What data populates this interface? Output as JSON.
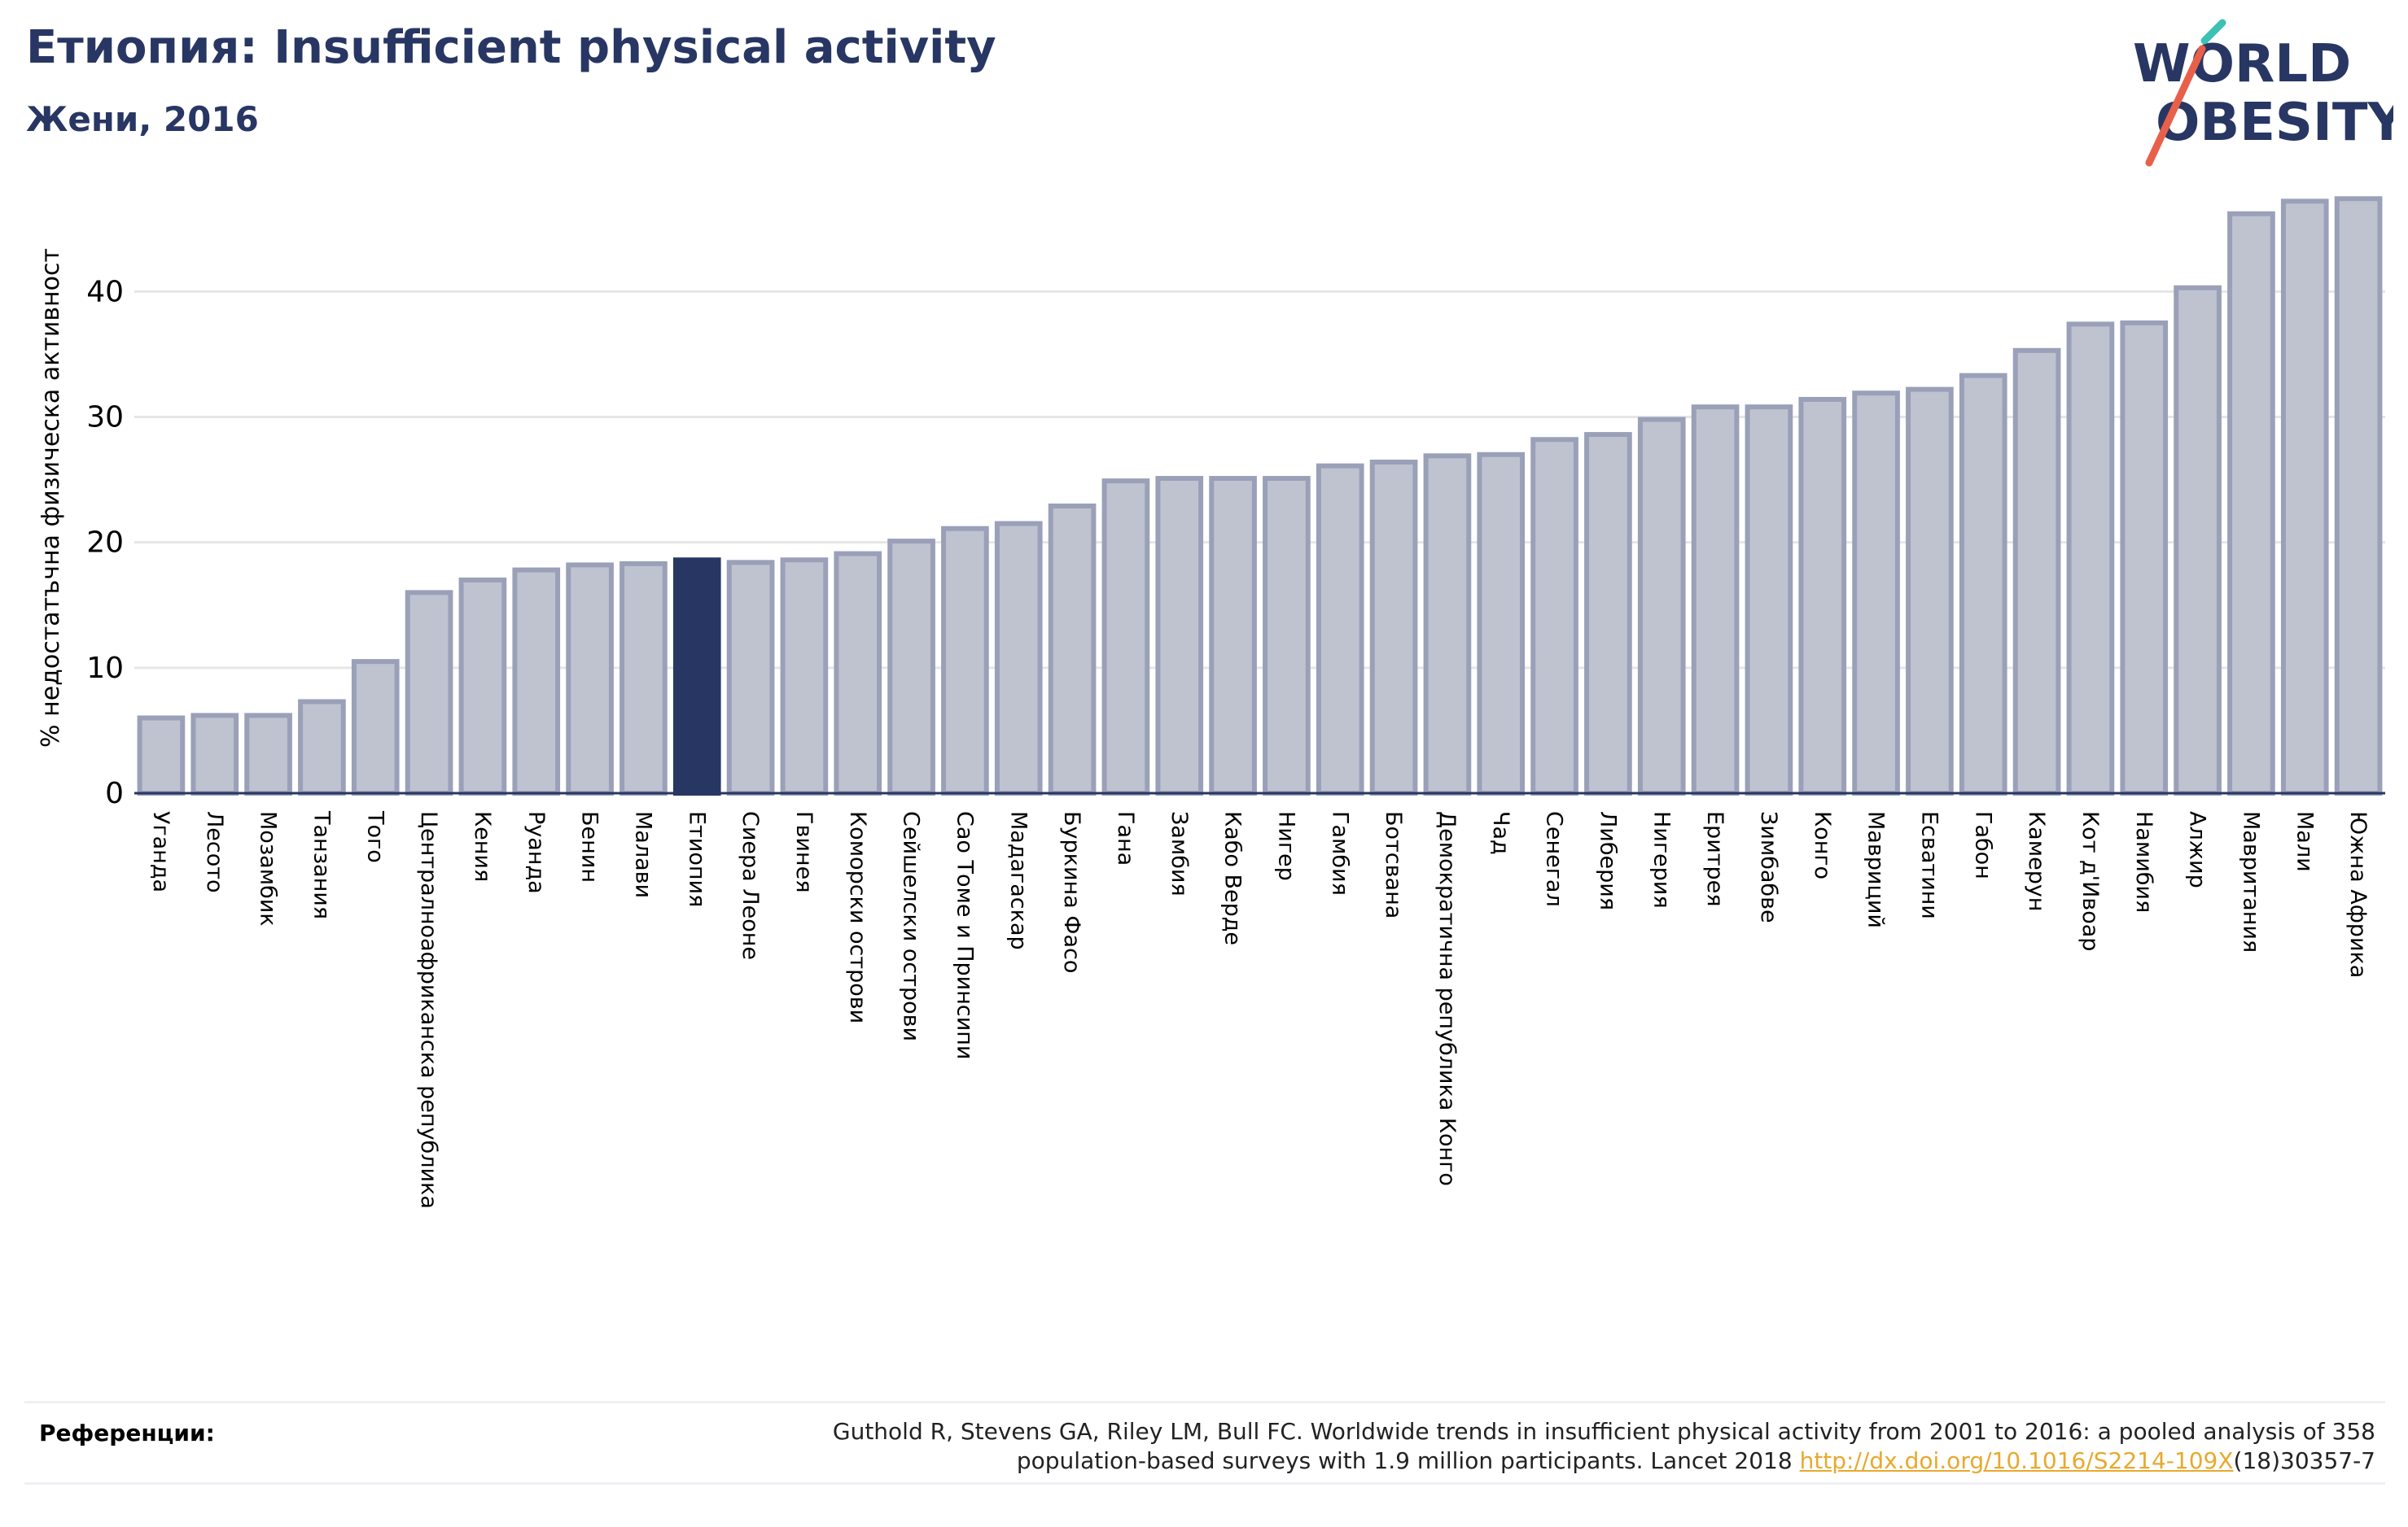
{
  "header": {
    "title": "Етиопия: Insufficient physical activity",
    "subtitle": "Жени, 2016"
  },
  "logo": {
    "line1": "WORLD",
    "line2": "OBESITY",
    "icon": "world-obesity-logo"
  },
  "colors": {
    "bar": "#bfc3d0",
    "bar_border": "#9aa0b8",
    "highlight": "#283663",
    "title": "#283663",
    "grid": "#e6e6e6",
    "link": "#e8a92e",
    "logo_teal": "#3cc1b4",
    "logo_orange": "#e8604a"
  },
  "chart_data": {
    "type": "bar",
    "ylabel": "% недостатъчна физическа активност",
    "ylim": [
      0,
      48
    ],
    "yticks": [
      0,
      10,
      20,
      30,
      40
    ],
    "grid": true,
    "highlight": "Етиопия",
    "categories": [
      "Уганда",
      "Лесото",
      "Мозамбик",
      "Танзания",
      "Того",
      "Централноафриканска република",
      "Кения",
      "Руанда",
      "Бенин",
      "Малави",
      "Етиопия",
      "Сиера Леоне",
      "Гвинея",
      "Коморски острови",
      "Сейшелски острови",
      "Сао Томе и Принсипи",
      "Мадагаскар",
      "Буркина Фасо",
      "Гана",
      "Замбия",
      "Кабо Верде",
      "Нигер",
      "Гамбия",
      "Ботсвана",
      "Демократична република Конго",
      "Чад",
      "Сенегал",
      "Либерия",
      "Нигерия",
      "Еритрея",
      "Зимбабве",
      "Конго",
      "Мавриций",
      "Есватини",
      "Габон",
      "Камерун",
      "Кот д'Ивоар",
      "Намибия",
      "Алжир",
      "Мавритания",
      "Мали",
      "Южна Африка"
    ],
    "values": [
      6.0,
      6.2,
      6.2,
      7.3,
      10.5,
      16.0,
      17.0,
      17.8,
      18.2,
      18.3,
      18.6,
      18.4,
      18.6,
      19.1,
      20.1,
      21.1,
      21.5,
      22.9,
      24.9,
      25.1,
      25.1,
      25.1,
      26.1,
      26.4,
      26.9,
      27.0,
      28.2,
      28.6,
      29.8,
      30.8,
      30.8,
      31.4,
      31.9,
      32.2,
      33.3,
      35.3,
      37.4,
      37.5,
      40.3,
      46.2,
      47.2,
      47.4
    ]
  },
  "references": {
    "label": "Референции:",
    "line1": "Guthold R, Stevens GA, Riley LM, Bull FC. Worldwide trends in insufficient physical activity from 2001 to 2016: a pooled analysis of 358",
    "line2_before": "population-based surveys with 1.9 million participants. Lancet 2018 ",
    "link": "http://dx.doi.org/10.1016/S2214-109X",
    "line2_after": "(18)30357-7"
  }
}
